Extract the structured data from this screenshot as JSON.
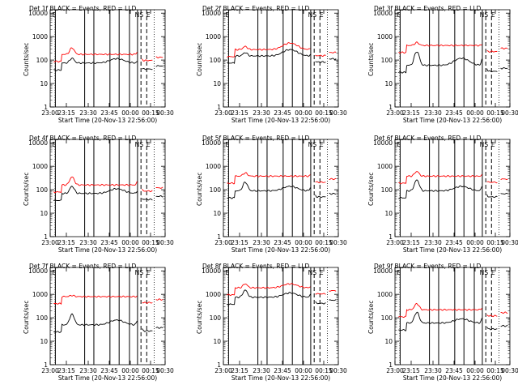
{
  "figure": {
    "xlabel_prefix": "Start Time",
    "start_time": "(20-Nov-13 22:56:00)",
    "ylabel": "Counts/sec"
  },
  "markers": [
    "N",
    "S",
    "E"
  ],
  "chart_data": [
    {
      "type": "line",
      "title": "Det 1f  BLACK = Events, RED = LLD",
      "xticks": [
        "23:00",
        "23:15",
        "23:30",
        "23:45",
        "00:00",
        "00:15",
        "00:30"
      ],
      "yticks": [
        "1",
        "10",
        "100",
        "1000",
        "10000"
      ],
      "ylog": true,
      "ylim": [
        1,
        14000
      ],
      "x_minutes": [
        0,
        100
      ],
      "series": [
        {
          "name": "Events",
          "color": "#000000",
          "base": 75,
          "bump": 120,
          "hump": 40
        },
        {
          "name": "LLD",
          "color": "#ff0000",
          "base": 175,
          "bump": 330,
          "hump": 0
        }
      ]
    },
    {
      "type": "line",
      "title": "Det 2f  BLACK = Events, RED = LLD",
      "xticks": [
        "23:00",
        "23:15",
        "23:30",
        "23:45",
        "00:00",
        "00:15",
        "00:30"
      ],
      "yticks": [
        "1",
        "10",
        "100",
        "1000",
        "10000"
      ],
      "ylog": true,
      "ylim": [
        1,
        14000
      ],
      "x_minutes": [
        0,
        100
      ],
      "series": [
        {
          "name": "Events",
          "color": "#000000",
          "base": 150,
          "bump": 210,
          "hump": 130
        },
        {
          "name": "LLD",
          "color": "#ff0000",
          "base": 280,
          "bump": 380,
          "hump": 250
        }
      ]
    },
    {
      "type": "line",
      "title": "Det 3f  BLACK = Events, RED = LLD",
      "xticks": [
        "23:00",
        "23:15",
        "23:30",
        "23:45",
        "00:00",
        "00:15",
        "00:30"
      ],
      "yticks": [
        "1",
        "10",
        "100",
        "1000",
        "10000"
      ],
      "ylog": true,
      "ylim": [
        1,
        14000
      ],
      "x_minutes": [
        0,
        100
      ],
      "series": [
        {
          "name": "Events",
          "color": "#000000",
          "base": 60,
          "bump": 230,
          "hump": 60
        },
        {
          "name": "LLD",
          "color": "#ff0000",
          "base": 420,
          "bump": 560,
          "hump": 0
        }
      ]
    },
    {
      "type": "line",
      "title": "Det 4f  BLACK = Events, RED = LLD",
      "xticks": [
        "23:00",
        "23:15",
        "23:30",
        "23:45",
        "00:00",
        "00:15",
        "00:30"
      ],
      "yticks": [
        "1",
        "10",
        "100",
        "1000",
        "10000"
      ],
      "ylog": true,
      "ylim": [
        1,
        14000
      ],
      "x_minutes": [
        0,
        100
      ],
      "series": [
        {
          "name": "Events",
          "color": "#000000",
          "base": 70,
          "bump": 140,
          "hump": 40
        },
        {
          "name": "LLD",
          "color": "#ff0000",
          "base": 160,
          "bump": 350,
          "hump": 0
        }
      ]
    },
    {
      "type": "line",
      "title": "Det 5f  BLACK = Events, RED = LLD",
      "xticks": [
        "23:00",
        "23:15",
        "23:30",
        "23:45",
        "00:00",
        "00:15",
        "00:30"
      ],
      "yticks": [
        "1",
        "10",
        "100",
        "1000",
        "10000"
      ],
      "ylog": true,
      "ylim": [
        1,
        14000
      ],
      "x_minutes": [
        0,
        100
      ],
      "series": [
        {
          "name": "Events",
          "color": "#000000",
          "base": 90,
          "bump": 210,
          "hump": 50
        },
        {
          "name": "LLD",
          "color": "#ff0000",
          "base": 380,
          "bump": 520,
          "hump": 0
        }
      ]
    },
    {
      "type": "line",
      "title": "Det 6f  BLACK = Events, RED = LLD",
      "xticks": [
        "23:00",
        "23:15",
        "23:30",
        "23:45",
        "00:00",
        "00:15",
        "00:30"
      ],
      "yticks": [
        "1",
        "10",
        "100",
        "1000",
        "10000"
      ],
      "ylog": true,
      "ylim": [
        1,
        14000
      ],
      "x_minutes": [
        0,
        100
      ],
      "series": [
        {
          "name": "Events",
          "color": "#000000",
          "base": 90,
          "bump": 260,
          "hump": 50
        },
        {
          "name": "LLD",
          "color": "#ff0000",
          "base": 380,
          "bump": 600,
          "hump": 0
        }
      ]
    },
    {
      "type": "line",
      "title": "Det 7f  BLACK = Events, RED = LLD",
      "xticks": [
        "23:00",
        "23:15",
        "23:30",
        "23:45",
        "00:00",
        "00:15",
        "00:30"
      ],
      "yticks": [
        "1",
        "10",
        "100",
        "1000",
        "10000"
      ],
      "ylog": true,
      "ylim": [
        1,
        14000
      ],
      "x_minutes": [
        0,
        100
      ],
      "series": [
        {
          "name": "Events",
          "color": "#000000",
          "base": 50,
          "bump": 140,
          "hump": 30
        },
        {
          "name": "LLD",
          "color": "#ff0000",
          "base": 800,
          "bump": 900,
          "hump": 0
        }
      ]
    },
    {
      "type": "line",
      "title": "Det 8f  BLACK = Events, RED = LLD",
      "xticks": [
        "23:00",
        "23:15",
        "23:30",
        "23:45",
        "00:00",
        "00:15",
        "00:30"
      ],
      "yticks": [
        "1",
        "10",
        "100",
        "1000",
        "10000"
      ],
      "ylog": true,
      "ylim": [
        1,
        14000
      ],
      "x_minutes": [
        0,
        100
      ],
      "series": [
        {
          "name": "Events",
          "color": "#000000",
          "base": 750,
          "bump": 1500,
          "hump": 400
        },
        {
          "name": "LLD",
          "color": "#ff0000",
          "base": 1900,
          "bump": 2800,
          "hump": 900
        }
      ]
    },
    {
      "type": "line",
      "title": "Det 9f  BLACK = Events, RED = LLD",
      "xticks": [
        "23:00",
        "23:15",
        "23:30",
        "23:45",
        "00:00",
        "00:15",
        "00:30"
      ],
      "yticks": [
        "1",
        "10",
        "100",
        "1000",
        "10000"
      ],
      "ylog": true,
      "ylim": [
        1,
        14000
      ],
      "x_minutes": [
        0,
        100
      ],
      "series": [
        {
          "name": "Events",
          "color": "#000000",
          "base": 60,
          "bump": 170,
          "hump": 30
        },
        {
          "name": "LLD",
          "color": "#ff0000",
          "base": 220,
          "bump": 400,
          "hump": 0
        }
      ]
    }
  ]
}
